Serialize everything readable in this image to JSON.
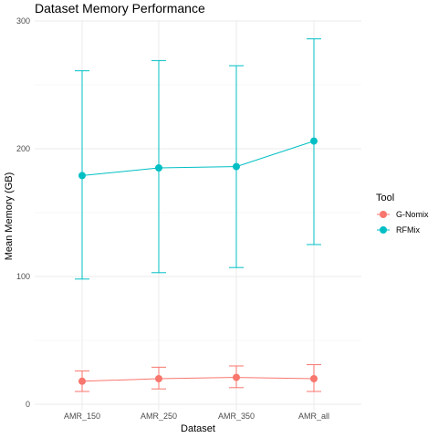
{
  "chart_data": {
    "type": "line",
    "title": "Dataset Memory Performance",
    "xlabel": "Dataset",
    "ylabel": "Mean Memory (GB)",
    "categories": [
      "AMR_150",
      "AMR_250",
      "AMR_350",
      "AMR_all"
    ],
    "ylim": [
      -5,
      300
    ],
    "yticks": [
      0,
      100,
      200,
      300
    ],
    "ytick_labels": [
      "0",
      "100",
      "200",
      "300"
    ],
    "grid": true,
    "legend": {
      "title": "Tool",
      "placement": "right"
    },
    "series": [
      {
        "name": "G-Nomix",
        "color": "#F8766D",
        "values": [
          18,
          20,
          21,
          20
        ],
        "error_low": [
          10,
          12,
          13,
          10
        ],
        "error_high": [
          26,
          29,
          30,
          31
        ]
      },
      {
        "name": "RFMix",
        "color": "#00BFC4",
        "values": [
          179,
          185,
          186,
          206
        ],
        "error_low": [
          98,
          103,
          107,
          125
        ],
        "error_high": [
          261,
          269,
          265,
          286
        ]
      }
    ]
  }
}
